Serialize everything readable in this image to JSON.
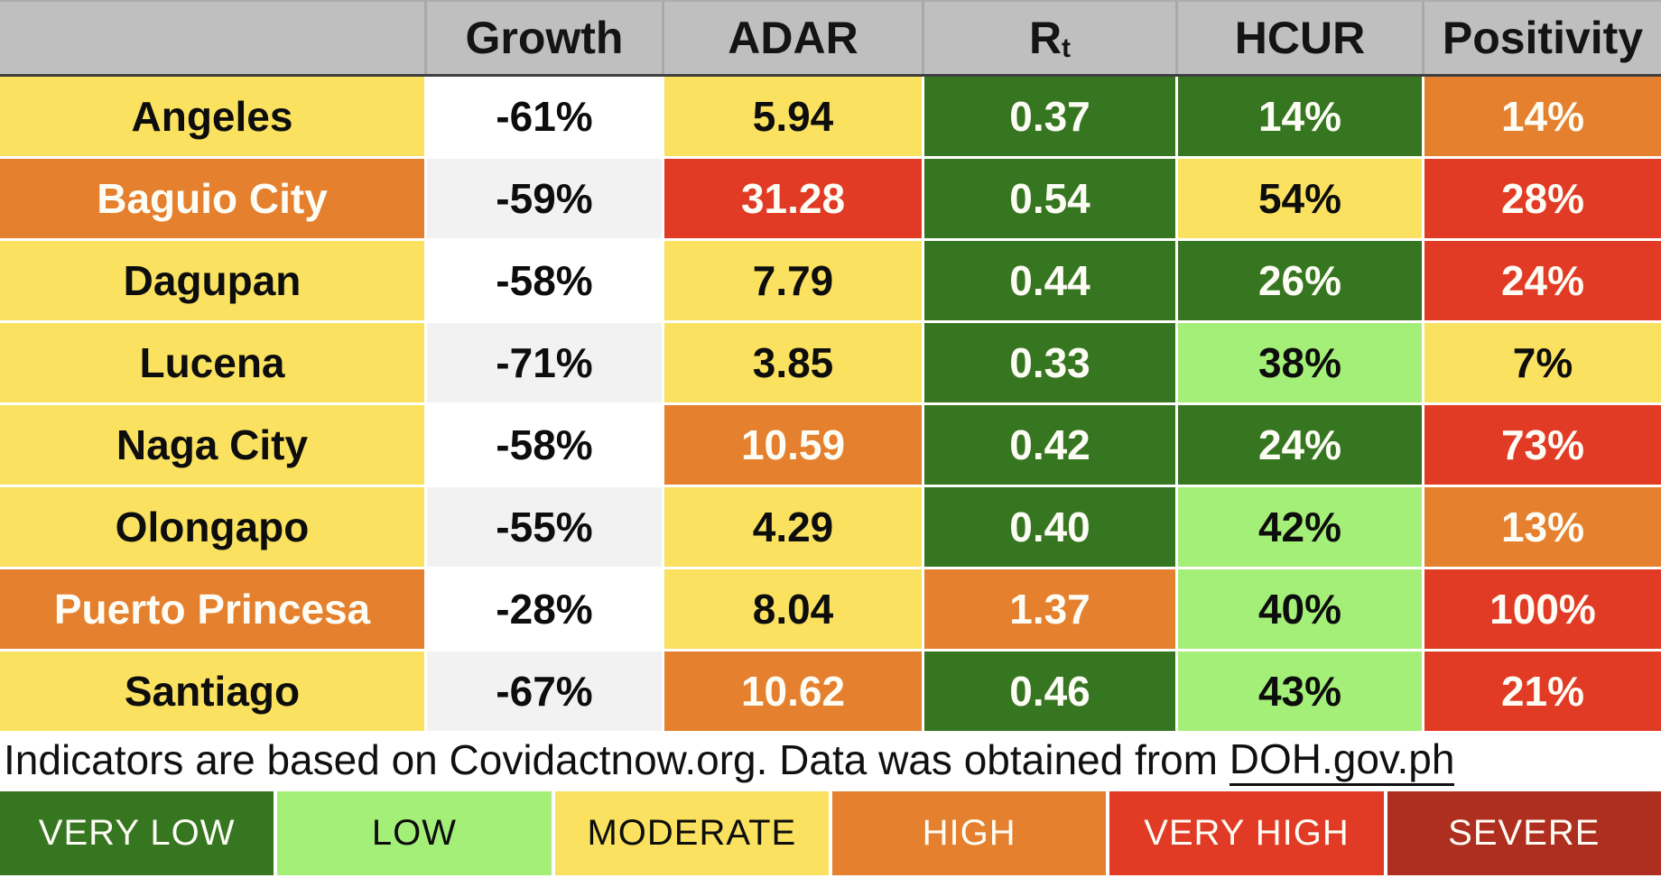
{
  "table": {
    "header": {
      "columns": [
        "",
        "Growth",
        "ADAR",
        "R",
        "HCUR",
        "Positivity"
      ],
      "rt_subscript": "t"
    },
    "rows": [
      {
        "city": {
          "v": "Angeles",
          "lv": "moderate"
        },
        "growth": {
          "v": "-61%",
          "lv": "plain"
        },
        "adar": {
          "v": "5.94",
          "lv": "moderate"
        },
        "rt": {
          "v": "0.37",
          "lv": "very_low"
        },
        "hcur": {
          "v": "14%",
          "lv": "very_low"
        },
        "positivity": {
          "v": "14%",
          "lv": "high"
        }
      },
      {
        "city": {
          "v": "Baguio City",
          "lv": "high"
        },
        "growth": {
          "v": "-59%",
          "lv": "plain_alt"
        },
        "adar": {
          "v": "31.28",
          "lv": "very_high"
        },
        "rt": {
          "v": "0.54",
          "lv": "very_low"
        },
        "hcur": {
          "v": "54%",
          "lv": "moderate"
        },
        "positivity": {
          "v": "28%",
          "lv": "very_high"
        }
      },
      {
        "city": {
          "v": "Dagupan",
          "lv": "moderate"
        },
        "growth": {
          "v": "-58%",
          "lv": "plain"
        },
        "adar": {
          "v": "7.79",
          "lv": "moderate"
        },
        "rt": {
          "v": "0.44",
          "lv": "very_low"
        },
        "hcur": {
          "v": "26%",
          "lv": "very_low"
        },
        "positivity": {
          "v": "24%",
          "lv": "very_high"
        }
      },
      {
        "city": {
          "v": "Lucena",
          "lv": "moderate"
        },
        "growth": {
          "v": "-71%",
          "lv": "plain_alt"
        },
        "adar": {
          "v": "3.85",
          "lv": "moderate"
        },
        "rt": {
          "v": "0.33",
          "lv": "very_low"
        },
        "hcur": {
          "v": "38%",
          "lv": "low"
        },
        "positivity": {
          "v": "7%",
          "lv": "moderate"
        }
      },
      {
        "city": {
          "v": "Naga City",
          "lv": "moderate"
        },
        "growth": {
          "v": "-58%",
          "lv": "plain"
        },
        "adar": {
          "v": "10.59",
          "lv": "high"
        },
        "rt": {
          "v": "0.42",
          "lv": "very_low"
        },
        "hcur": {
          "v": "24%",
          "lv": "very_low"
        },
        "positivity": {
          "v": "73%",
          "lv": "very_high"
        }
      },
      {
        "city": {
          "v": "Olongapo",
          "lv": "moderate"
        },
        "growth": {
          "v": "-55%",
          "lv": "plain_alt"
        },
        "adar": {
          "v": "4.29",
          "lv": "moderate"
        },
        "rt": {
          "v": "0.40",
          "lv": "very_low"
        },
        "hcur": {
          "v": "42%",
          "lv": "low"
        },
        "positivity": {
          "v": "13%",
          "lv": "high"
        }
      },
      {
        "city": {
          "v": "Puerto Princesa",
          "lv": "high"
        },
        "growth": {
          "v": "-28%",
          "lv": "plain"
        },
        "adar": {
          "v": "8.04",
          "lv": "moderate"
        },
        "rt": {
          "v": "1.37",
          "lv": "high"
        },
        "hcur": {
          "v": "40%",
          "lv": "low"
        },
        "positivity": {
          "v": "100%",
          "lv": "very_high"
        }
      },
      {
        "city": {
          "v": "Santiago",
          "lv": "moderate"
        },
        "growth": {
          "v": "-67%",
          "lv": "plain_alt"
        },
        "adar": {
          "v": "10.62",
          "lv": "high"
        },
        "rt": {
          "v": "0.46",
          "lv": "very_low"
        },
        "hcur": {
          "v": "43%",
          "lv": "low"
        },
        "positivity": {
          "v": "21%",
          "lv": "very_high"
        }
      }
    ]
  },
  "footnote": {
    "text": "Indicators are based on Covidactnow.org. Data was obtained from ",
    "link": "DOH.gov.ph"
  },
  "legend": [
    {
      "label": "VERY LOW",
      "lv": "very_low"
    },
    {
      "label": "LOW",
      "lv": "low"
    },
    {
      "label": "MODERATE",
      "lv": "moderate"
    },
    {
      "label": "HIGH",
      "lv": "high"
    },
    {
      "label": "VERY HIGH",
      "lv": "very_high"
    },
    {
      "label": "SEVERE",
      "lv": "severe"
    }
  ],
  "colors": {
    "very_low": "#377621",
    "low": "#a4ef78",
    "moderate": "#fae15f",
    "high": "#e5802e",
    "very_high": "#e23b25",
    "severe": "#ae2f1f",
    "header_gray": "#bfbfbf",
    "plain": "#ffffff",
    "plain_alt": "#f2f2f2"
  },
  "chart_data": {
    "type": "table",
    "columns": [
      "",
      "Growth",
      "ADAR",
      "Rt",
      "HCUR",
      "Positivity"
    ],
    "rows": [
      [
        "Angeles",
        "-61%",
        "5.94",
        "0.37",
        "14%",
        "14%"
      ],
      [
        "Baguio City",
        "-59%",
        "31.28",
        "0.54",
        "54%",
        "28%"
      ],
      [
        "Dagupan",
        "-58%",
        "7.79",
        "0.44",
        "26%",
        "24%"
      ],
      [
        "Lucena",
        "-71%",
        "3.85",
        "0.33",
        "38%",
        "7%"
      ],
      [
        "Naga City",
        "-58%",
        "10.59",
        "0.42",
        "24%",
        "73%"
      ],
      [
        "Olongapo",
        "-55%",
        "4.29",
        "0.40",
        "42%",
        "13%"
      ],
      [
        "Puerto Princesa",
        "-28%",
        "8.04",
        "1.37",
        "40%",
        "100%"
      ],
      [
        "Santiago",
        "-67%",
        "10.62",
        "0.46",
        "43%",
        "21%"
      ]
    ],
    "legend": [
      "VERY LOW",
      "LOW",
      "MODERATE",
      "HIGH",
      "VERY HIGH",
      "SEVERE"
    ],
    "footnote": "Indicators are based on Covidactnow.org. Data was obtained from DOH.gov.ph"
  }
}
